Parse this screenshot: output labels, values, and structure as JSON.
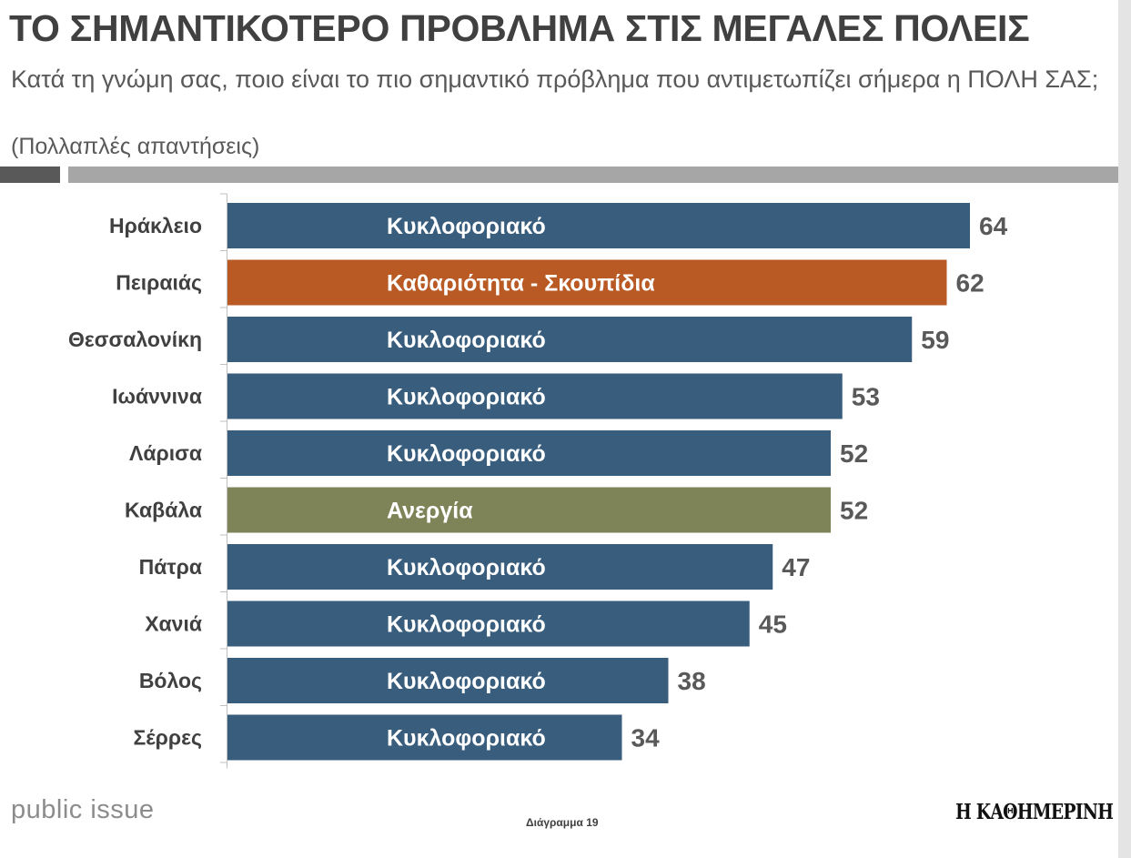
{
  "header": {
    "title": "ΤΟ ΣΗΜΑΝΤΙΚΟΤΕΡΟ ΠΡΟΒΛΗΜΑ ΣΤΙΣ ΜΕΓΑΛΕΣ ΠΟΛΕΙΣ",
    "subtitle": "Κατά τη γνώμη σας, ποιο είναι το πιο σημαντικό πρόβλημα που αντιμετωπίζει σήμερα η ΠΟΛΗ ΣΑΣ;",
    "note": "(Πολλαπλές απαντήσεις)"
  },
  "footer": {
    "source": "public issue",
    "caption": "Διάγραμμα 19",
    "publisher": "Η ΚΑΘΗΜΕΡΙΝΗ"
  },
  "colors": {
    "traffic": "#385d7d",
    "cleanliness": "#b95a24",
    "unemployment": "#7f8458",
    "category_text": "#404040",
    "value_text": "#595959"
  },
  "chart_data": {
    "type": "bar",
    "orientation": "horizontal",
    "categories": [
      "Ηράκλειο",
      "Πειραιάς",
      "Θεσσαλονίκη",
      "Ιωάννινα",
      "Λάρισα",
      "Καβάλα",
      "Πάτρα",
      "Χανιά",
      "Βόλος",
      "Σέρρες"
    ],
    "values": [
      64,
      62,
      59,
      53,
      52,
      52,
      47,
      45,
      38,
      34
    ],
    "bar_labels": [
      "Κυκλοφοριακό",
      "Καθαριότητα - Σκουπίδια",
      "Κυκλοφοριακό",
      "Κυκλοφοριακό",
      "Κυκλοφοριακό",
      "Ανεργία",
      "Κυκλοφοριακό",
      "Κυκλοφοριακό",
      "Κυκλοφοριακό",
      "Κυκλοφοριακό"
    ],
    "bar_color_keys": [
      "traffic",
      "cleanliness",
      "traffic",
      "traffic",
      "traffic",
      "unemployment",
      "traffic",
      "traffic",
      "traffic",
      "traffic"
    ],
    "xlim": [
      0,
      64
    ],
    "grid": false,
    "legend": "none"
  }
}
